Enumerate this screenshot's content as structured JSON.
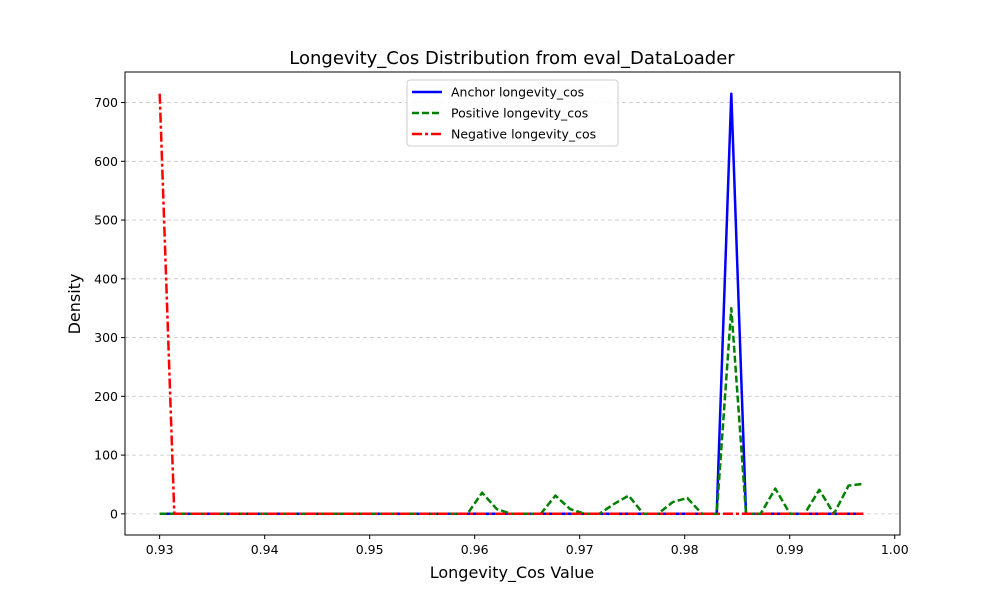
{
  "chart_data": {
    "type": "line",
    "title": "Longevity_Cos Distribution from eval_DataLoader",
    "xlabel": "Longevity_Cos Value",
    "ylabel": "Density",
    "xlim": [
      0.9267,
      1.0005
    ],
    "ylim": [
      -36,
      752
    ],
    "xticks": [
      0.93,
      0.94,
      0.95,
      0.96,
      0.97,
      0.98,
      0.99,
      1.0
    ],
    "xtick_labels": [
      "0.93",
      "0.94",
      "0.95",
      "0.96",
      "0.97",
      "0.98",
      "0.99",
      "1.00"
    ],
    "yticks": [
      0,
      100,
      200,
      300,
      400,
      500,
      600,
      700
    ],
    "ytick_labels": [
      "0",
      "100",
      "200",
      "300",
      "400",
      "500",
      "600",
      "700"
    ],
    "grid": "y-dashed",
    "legend_position": "top-center",
    "x": {
      "start": 0.93,
      "end": 0.997,
      "count": 49
    },
    "series": [
      {
        "name": "Anchor longevity_cos",
        "color": "#0000ff",
        "style": "solid",
        "values": [
          0,
          0,
          0,
          0,
          0,
          0,
          0,
          0,
          0,
          0,
          0,
          0,
          0,
          0,
          0,
          0,
          0,
          0,
          0,
          0,
          0,
          0,
          0,
          0,
          0,
          0,
          0,
          0,
          0,
          0,
          0,
          0,
          0,
          0,
          0,
          0,
          0,
          0,
          0,
          715,
          0,
          0,
          0,
          0,
          0,
          0,
          0,
          0,
          0
        ]
      },
      {
        "name": "Positive longevity_cos",
        "color": "#008000",
        "style": "dashed",
        "values": [
          0,
          0,
          0,
          0,
          0,
          0,
          0,
          0,
          0,
          0,
          0,
          0,
          0,
          0,
          0,
          0,
          0,
          0,
          0,
          0,
          0,
          0,
          36,
          8,
          0,
          0,
          0,
          31,
          8,
          0,
          0,
          17,
          31,
          0,
          0,
          20,
          27,
          0,
          0,
          350,
          0,
          0,
          43,
          0,
          0,
          41,
          0,
          48,
          51
        ]
      },
      {
        "name": "Negative longevity_cos",
        "color": "#ff0000",
        "style": "dashdot",
        "values": [
          715,
          0,
          0,
          0,
          0,
          0,
          0,
          0,
          0,
          0,
          0,
          0,
          0,
          0,
          0,
          0,
          0,
          0,
          0,
          0,
          0,
          0,
          0,
          0,
          0,
          0,
          0,
          0,
          0,
          0,
          0,
          0,
          0,
          0,
          0,
          0,
          0,
          0,
          0,
          0,
          0,
          0,
          0,
          0,
          0,
          0,
          0,
          0,
          0
        ]
      }
    ]
  }
}
